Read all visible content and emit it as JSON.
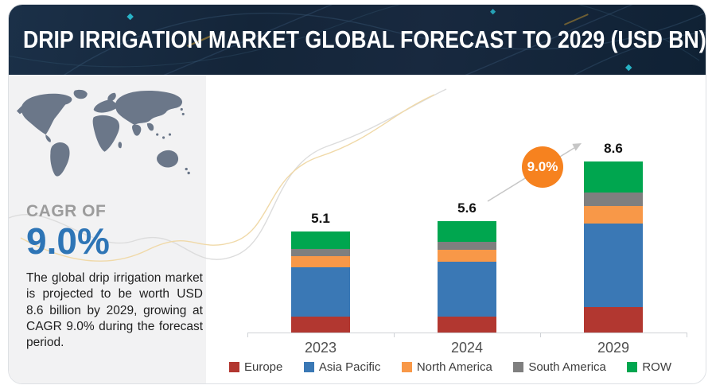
{
  "header": {
    "title": "DRIP IRRIGATION MARKET GLOBAL FORECAST TO 2029 (USD BN)"
  },
  "sidebar": {
    "map_icon": "world-map-icon",
    "cagr_label": "CAGR OF",
    "cagr_value": "9.0%",
    "description": "The global drip irrigation market is projected to be worth USD 8.6 billion by 2029, growing at CAGR 9.0% during the forecast period."
  },
  "annotation": {
    "growth_badge": "9.0%",
    "arrow_icon": "growth-arrow-icon"
  },
  "colors": {
    "banner_bg": "#16283e",
    "panel_bg": "#f2f2f3",
    "accent_blue": "#2e75b6",
    "badge_orange": "#f6821f",
    "map_fill": "#6b7789",
    "axis_line": "#cfd2d6",
    "axis_label": "#4f4f4f",
    "curve_gray": "#dcdcdc",
    "curve_yellow": "#f0d9a8"
  },
  "chart_data": {
    "type": "bar",
    "stacked": true,
    "title": "DRIP IRRIGATION MARKET GLOBAL FORECAST TO 2029 (USD BN)",
    "unit": "USD BN",
    "categories": [
      "2023",
      "2024",
      "2029"
    ],
    "series": [
      {
        "name": "Europe",
        "color": "#b23730",
        "values": [
          0.8,
          0.8,
          1.3
        ]
      },
      {
        "name": "Asia Pacific",
        "color": "#3a78b5",
        "values": [
          2.5,
          2.75,
          4.2
        ]
      },
      {
        "name": "North America",
        "color": "#f89848",
        "values": [
          0.55,
          0.6,
          0.85
        ]
      },
      {
        "name": "South America",
        "color": "#7f7f7f",
        "values": [
          0.35,
          0.4,
          0.7
        ]
      },
      {
        "name": "ROW",
        "color": "#00a64f",
        "values": [
          0.9,
          1.05,
          1.55
        ]
      }
    ],
    "totals": [
      5.1,
      5.6,
      8.6
    ],
    "total_labels": [
      "5.1",
      "5.6",
      "8.6"
    ],
    "cagr_annotation": "9.0%",
    "ylim": [
      0,
      9.2
    ],
    "grid": false,
    "legend_position": "bottom"
  }
}
